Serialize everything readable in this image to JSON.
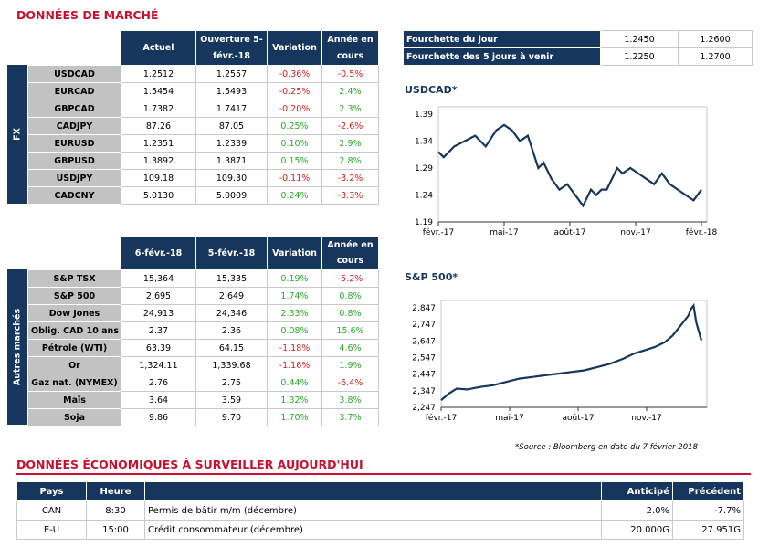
{
  "market_title": "DONNÉES DE MARCHÉ",
  "fx": {
    "side_label": "FX",
    "headers": [
      "Actuel",
      "Ouverture 5-févr.-18",
      "Variation",
      "Année en cours"
    ],
    "rows": [
      {
        "name": "USDCAD",
        "cur": "1.2512",
        "open": "1.2557",
        "var": "-0.36%",
        "ytd": "-0.5%"
      },
      {
        "name": "EURCAD",
        "cur": "1.5454",
        "open": "1.5493",
        "var": "-0.25%",
        "ytd": "2.4%"
      },
      {
        "name": "GBPCAD",
        "cur": "1.7382",
        "open": "1.7417",
        "var": "-0.20%",
        "ytd": "2.3%"
      },
      {
        "name": "CADJPY",
        "cur": "87.26",
        "open": "87.05",
        "var": "0.25%",
        "ytd": "-2.6%"
      },
      {
        "name": "EURUSD",
        "cur": "1.2351",
        "open": "1.2339",
        "var": "0.10%",
        "ytd": "2.9%"
      },
      {
        "name": "GBPUSD",
        "cur": "1.3892",
        "open": "1.3871",
        "var": "0.15%",
        "ytd": "2.8%"
      },
      {
        "name": "USDJPY",
        "cur": "109.18",
        "open": "109.30",
        "var": "-0.11%",
        "ytd": "-3.2%"
      },
      {
        "name": "CADCNY",
        "cur": "5.0130",
        "open": "5.0009",
        "var": "0.24%",
        "ytd": "-3.3%"
      }
    ]
  },
  "other": {
    "side_label": "Autres marchés",
    "headers": [
      "6-févr.-18",
      "5-févr.-18",
      "Variation",
      "Année en cours"
    ],
    "rows": [
      {
        "name": "S&P TSX",
        "cur": "15,364",
        "open": "15,335",
        "var": "0.19%",
        "ytd": "-5.2%"
      },
      {
        "name": "S&P 500",
        "cur": "2,695",
        "open": "2,649",
        "var": "1.74%",
        "ytd": "0.8%"
      },
      {
        "name": "Dow Jones",
        "cur": "24,913",
        "open": "24,346",
        "var": "2.33%",
        "ytd": "0.8%"
      },
      {
        "name": "Oblig. CAD 10 ans",
        "cur": "2.37",
        "open": "2.36",
        "var": "0.08%",
        "ytd": "15.6%"
      },
      {
        "name": "Pétrole (WTI)",
        "cur": "63.39",
        "open": "64.15",
        "var": "-1.18%",
        "ytd": "4.6%"
      },
      {
        "name": "Or",
        "cur": "1,324.11",
        "open": "1,339.68",
        "var": "-1.16%",
        "ytd": "1.9%"
      },
      {
        "name": "Gaz nat. (NYMEX)",
        "cur": "2.76",
        "open": "2.75",
        "var": "0.44%",
        "ytd": "-6.4%"
      },
      {
        "name": "Maïs",
        "cur": "3.64",
        "open": "3.59",
        "var": "1.32%",
        "ytd": "3.8%"
      },
      {
        "name": "Soja",
        "cur": "9.86",
        "open": "9.70",
        "var": "1.70%",
        "ytd": "3.7%"
      }
    ]
  },
  "range": {
    "rows": [
      {
        "label": "Fourchette du jour",
        "low": "1.2450",
        "high": "1.2600"
      },
      {
        "label": "Fourchette des 5 jours à venir",
        "low": "1.2250",
        "high": "1.2700"
      }
    ]
  },
  "chart_data": [
    {
      "type": "line",
      "title": "USDCAD*",
      "x_ticks": [
        "févr.-17",
        "mai-17",
        "août-17",
        "nov.-17",
        "févr.-18"
      ],
      "y_ticks": [
        "1.39",
        "1.34",
        "1.29",
        "1.24",
        "1.19"
      ],
      "ylim": [
        1.19,
        1.39
      ],
      "x": [
        0,
        0.02,
        0.06,
        0.1,
        0.14,
        0.18,
        0.22,
        0.25,
        0.28,
        0.31,
        0.34,
        0.36,
        0.38,
        0.4,
        0.43,
        0.46,
        0.49,
        0.52,
        0.55,
        0.58,
        0.6,
        0.62,
        0.64,
        0.66,
        0.68,
        0.7,
        0.73,
        0.76,
        0.79,
        0.82,
        0.85,
        0.88,
        0.91,
        0.94,
        0.97,
        1.0
      ],
      "values": [
        1.32,
        1.31,
        1.33,
        1.34,
        1.35,
        1.33,
        1.36,
        1.37,
        1.36,
        1.34,
        1.35,
        1.32,
        1.29,
        1.3,
        1.27,
        1.25,
        1.26,
        1.24,
        1.22,
        1.25,
        1.24,
        1.25,
        1.25,
        1.27,
        1.29,
        1.28,
        1.29,
        1.28,
        1.27,
        1.26,
        1.28,
        1.26,
        1.25,
        1.24,
        1.23,
        1.25
      ]
    },
    {
      "type": "line",
      "title": "S&P 500*",
      "x_ticks": [
        "févr.-17",
        "mai-17",
        "août-17",
        "nov.-17"
      ],
      "y_ticks": [
        "2,847",
        "2,747",
        "2,647",
        "2,547",
        "2,447",
        "2,347",
        "2,247"
      ],
      "ylim": [
        2247,
        2847
      ],
      "x": [
        0,
        0.03,
        0.06,
        0.1,
        0.15,
        0.2,
        0.25,
        0.3,
        0.35,
        0.4,
        0.45,
        0.5,
        0.55,
        0.6,
        0.65,
        0.7,
        0.74,
        0.78,
        0.82,
        0.86,
        0.89,
        0.91,
        0.93,
        0.95,
        0.96,
        0.97,
        0.98,
        1.0
      ],
      "values": [
        2290,
        2330,
        2360,
        2355,
        2370,
        2380,
        2400,
        2420,
        2430,
        2440,
        2450,
        2460,
        2470,
        2490,
        2510,
        2540,
        2570,
        2590,
        2610,
        2640,
        2680,
        2720,
        2760,
        2800,
        2840,
        2860,
        2760,
        2650
      ]
    }
  ],
  "source_note": "*Source : Bloomberg en date du  7 février 2018",
  "eco_title": "DONNÉES ÉCONOMIQUES À SURVEILLER AUJOURD'HUI",
  "eco": {
    "headers": [
      "Pays",
      "Heure",
      "",
      "Anticipé",
      "Précédent"
    ],
    "rows": [
      {
        "country": "CAN",
        "time": "8:30",
        "event": "Permis de bâtir m/m (décembre)",
        "exp": "2.0%",
        "prev": "-7.7%"
      },
      {
        "country": "E-U",
        "time": "15:00",
        "event": "Crédit consommateur (décembre)",
        "exp": "20.000G",
        "prev": "27.951G"
      }
    ]
  }
}
